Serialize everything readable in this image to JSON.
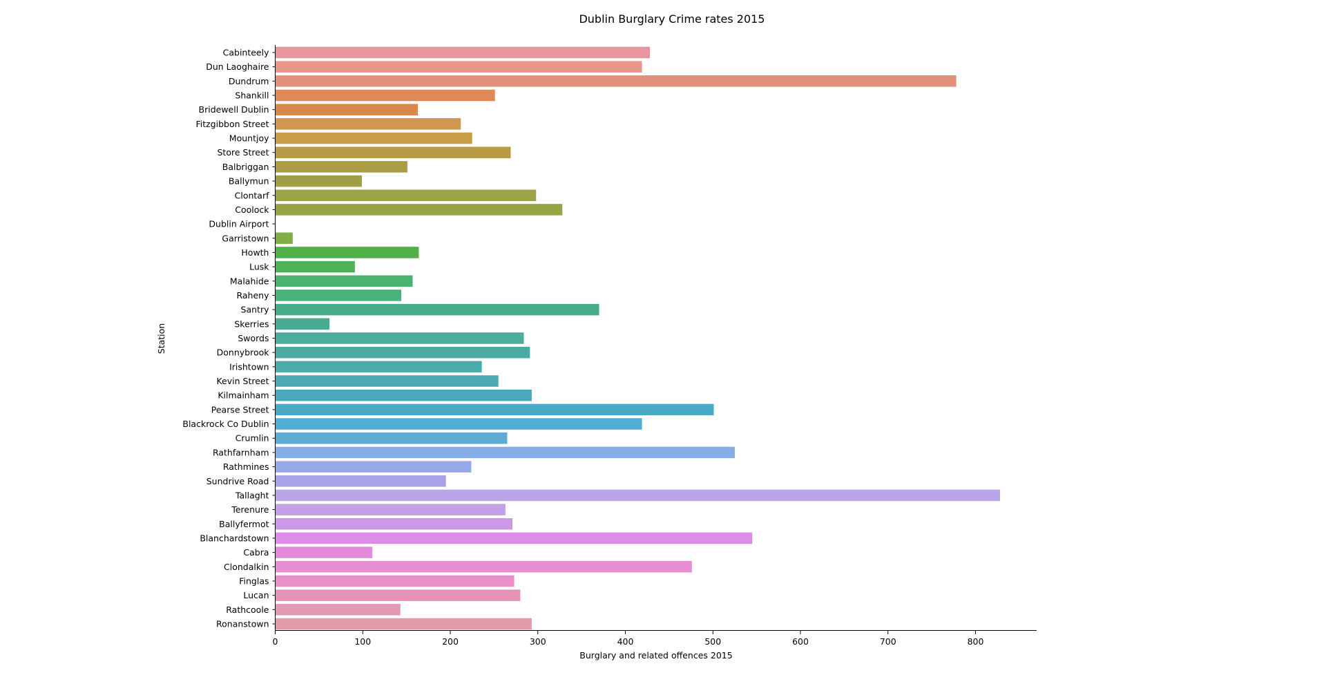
{
  "chart_data": {
    "type": "bar",
    "orientation": "horizontal",
    "title": "Dublin Burglary Crime rates 2015",
    "xlabel": "Burglary and related offences 2015",
    "ylabel": "Station",
    "xlim": [
      0,
      870
    ],
    "xticks": [
      "0",
      "100",
      "200",
      "300",
      "400",
      "500",
      "600",
      "700",
      "800"
    ],
    "grid": false,
    "categories": [
      "Cabinteely",
      "Dun Laoghaire",
      "Dundrum",
      "Shankill",
      "Bridewell Dublin",
      "Fitzgibbon Street",
      "Mountjoy",
      "Store Street",
      "Balbriggan",
      "Ballymun",
      "Clontarf",
      "Coolock",
      "Dublin Airport",
      "Garristown",
      "Howth",
      "Lusk",
      "Malahide",
      "Raheny",
      "Santry",
      "Skerries",
      "Swords",
      "Donnybrook",
      "Irishtown",
      "Kevin Street",
      "Kilmainham",
      "Pearse Street",
      "Blackrock Co Dublin",
      "Crumlin",
      "Rathfarnham",
      "Rathmines",
      "Sundrive Road",
      "Tallaght",
      "Terenure",
      "Ballyfermot",
      "Blanchardstown",
      "Cabra",
      "Clondalkin",
      "Finglas",
      "Lucan",
      "Rathcoole",
      "Ronanstown"
    ],
    "values": [
      428,
      419,
      778,
      251,
      163,
      212,
      225,
      269,
      151,
      99,
      298,
      328,
      0,
      20,
      164,
      91,
      157,
      144,
      370,
      62,
      284,
      291,
      236,
      255,
      293,
      501,
      419,
      265,
      525,
      224,
      195,
      828,
      263,
      271,
      545,
      111,
      476,
      273,
      280,
      143,
      293
    ],
    "colors": [
      "#e8969d",
      "#e8968a",
      "#e3907b",
      "#e08858",
      "#d9894c",
      "#d0984f",
      "#c99c48",
      "#b99a47",
      "#aa9b45",
      "#a29e45",
      "#9ba346",
      "#96a445",
      "#8daa44",
      "#7faf45",
      "#52b04a",
      "#4ab259",
      "#4ab36e",
      "#4ab27c",
      "#48ad8a",
      "#49ab94",
      "#4cad9d",
      "#4baba2",
      "#4babaa",
      "#4ca9b2",
      "#49a8bb",
      "#49aac5",
      "#50add5",
      "#5babd8",
      "#86aee6",
      "#98a8e6",
      "#a8a3e7",
      "#bba5e9",
      "#c3a0e8",
      "#cd99e6",
      "#dc8ee6",
      "#e589dc",
      "#e68ed4",
      "#e790c9",
      "#e692b6",
      "#e499b2",
      "#e59aa8"
    ]
  }
}
